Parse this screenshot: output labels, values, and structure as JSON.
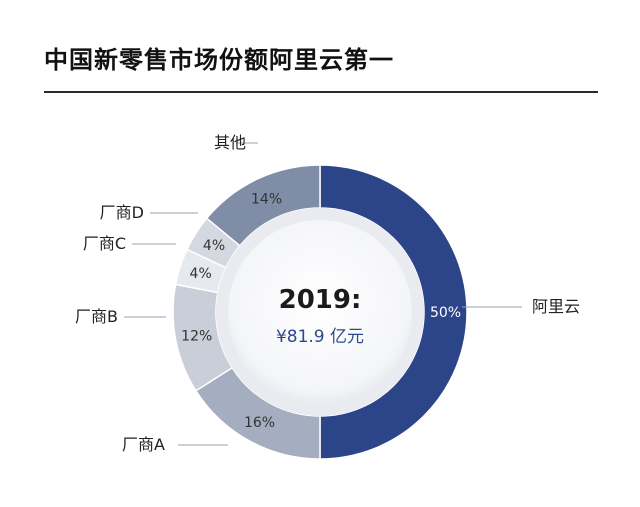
{
  "header": {
    "title": "中国新零售市场份额阿里云第一"
  },
  "center": {
    "year": "2019:",
    "total": "¥81.9 亿元"
  },
  "colors": {
    "aliyun": "#2b4588",
    "others": "#7f8da6",
    "vendor_d": "#d4d8e1",
    "vendor_c": "#e6e9ee",
    "vendor_b": "#c9ced8",
    "vendor_a": "#a4aec0",
    "inner_disk": "#e9ebf0",
    "leader": "#9aa3b3"
  },
  "chart_data": {
    "type": "pie",
    "year": "2019:",
    "total": "¥81.9 亿元",
    "slices": [
      {
        "name": "阿里云",
        "value": 50,
        "label": "50%"
      },
      {
        "name": "厂商A",
        "value": 16,
        "label": "16%"
      },
      {
        "name": "厂商B",
        "value": 12,
        "label": "12%"
      },
      {
        "name": "厂商C",
        "value": 4,
        "label": "4%"
      },
      {
        "name": "厂商D",
        "value": 4,
        "label": "4%"
      },
      {
        "name": "其他",
        "value": 14,
        "label": "14%"
      }
    ]
  }
}
